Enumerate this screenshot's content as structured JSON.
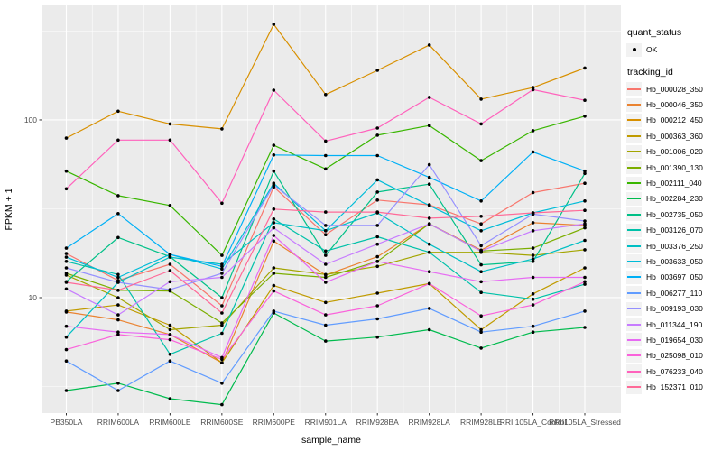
{
  "figure": {
    "kind": "ggplot-line-chart"
  },
  "legend": {
    "quant_status": {
      "title": "quant_status",
      "items": [
        {
          "label": "OK",
          "symbol": "black-point"
        }
      ]
    },
    "tracking_id": {
      "title": "tracking_id"
    }
  },
  "colors": {
    "panel_bg": "#EBEBEB",
    "gridline": "#FFFFFF",
    "point": "#000000",
    "legend_key_bg": "#F2F2F2",
    "tick_text": "#4D4D4D",
    "axis_text": "#000000"
  },
  "chart_data": {
    "type": "line",
    "title": "",
    "xlabel": "sample_name",
    "ylabel": "FPKM + 1",
    "y_scale": "log10",
    "ylim": [
      2.24,
      441
    ],
    "y_major_ticks": [
      10,
      100
    ],
    "y_minor_ticks": [
      3.162,
      31.62,
      316.2
    ],
    "grid": "white major and minor gridlines on gray panel",
    "legend_position": "right",
    "point_marker": "black point (quant_status OK)",
    "categories": [
      "PB350LA",
      "RRIM600LA",
      "RRIM600LE",
      "RRIM600SE",
      "RRIM600PE",
      "RRIM901LA",
      "RRIM928BA",
      "RRIM928LA",
      "RRIM928LE",
      "RRII105LA_Control",
      "RRII105LA_Stressed"
    ],
    "series": [
      {
        "name": "Hb_000028_350",
        "color": "#F8766D",
        "values": [
          17.7,
          12.5,
          15.4,
          9.0,
          42.0,
          22.6,
          35.4,
          33.3,
          26.0,
          39.0,
          44.0
        ]
      },
      {
        "name": "Hb_000046_350",
        "color": "#EA8331",
        "values": [
          8.3,
          7.5,
          6.2,
          4.3,
          20.8,
          13.4,
          17.0,
          26.0,
          18.5,
          26.4,
          25.5
        ]
      },
      {
        "name": "Hb_000212_450",
        "color": "#D89000",
        "values": [
          79,
          112,
          95,
          89,
          345,
          139,
          190,
          264,
          131,
          152,
          196
        ]
      },
      {
        "name": "Hb_000363_360",
        "color": "#C09B00",
        "values": [
          8.4,
          9.1,
          7.0,
          4.3,
          11.7,
          9.4,
          10.6,
          12.0,
          6.6,
          10.5,
          14.7
        ]
      },
      {
        "name": "Hb_001006_020",
        "color": "#A3A500",
        "values": [
          13.4,
          10.0,
          6.6,
          7.0,
          14.7,
          13.5,
          15.0,
          18.0,
          18.0,
          17.3,
          18.6
        ]
      },
      {
        "name": "Hb_001390_130",
        "color": "#7CAE00",
        "values": [
          13.7,
          11.0,
          10.9,
          7.2,
          13.7,
          13.0,
          16.0,
          26.0,
          18.3,
          19.0,
          24.7
        ]
      },
      {
        "name": "Hb_002111_040",
        "color": "#39B600",
        "values": [
          51.5,
          37.5,
          33.0,
          17.3,
          72.0,
          53.0,
          82.0,
          93.0,
          59.0,
          87.0,
          105.0
        ]
      },
      {
        "name": "Hb_002284_230",
        "color": "#00BB4E",
        "values": [
          3.0,
          3.3,
          2.7,
          2.5,
          8.2,
          5.7,
          6.0,
          6.6,
          5.2,
          6.4,
          6.8
        ]
      },
      {
        "name": "Hb_002735_050",
        "color": "#00C087",
        "values": [
          12.3,
          21.8,
          17.0,
          10.0,
          51.5,
          17.3,
          39.3,
          43.5,
          15.3,
          16.0,
          50.0
        ]
      },
      {
        "name": "Hb_003126_070",
        "color": "#00C1A9",
        "values": [
          16.0,
          13.5,
          4.8,
          6.3,
          27.7,
          18.3,
          22.0,
          18.0,
          10.7,
          9.8,
          11.9
        ]
      },
      {
        "name": "Hb_003376_250",
        "color": "#00BFC4",
        "values": [
          6.0,
          12.2,
          16.9,
          15.4,
          26.4,
          23.8,
          30.0,
          20.0,
          14.0,
          16.5,
          21.0
        ]
      },
      {
        "name": "Hb_003633_050",
        "color": "#00BCD8",
        "values": [
          16.9,
          13.0,
          17.5,
          14.5,
          44.0,
          23.8,
          46.0,
          33.0,
          23.8,
          30.0,
          35.0
        ]
      },
      {
        "name": "Hb_003697_050",
        "color": "#00B0F6",
        "values": [
          19.0,
          29.7,
          17.5,
          15.0,
          63.5,
          63.0,
          63.0,
          47.5,
          35.0,
          66.0,
          51.5
        ]
      },
      {
        "name": "Hb_006277_110",
        "color": "#619CFF",
        "values": [
          4.4,
          3.0,
          4.4,
          3.3,
          8.4,
          7.0,
          7.6,
          8.7,
          6.4,
          6.9,
          8.4
        ]
      },
      {
        "name": "Hb_009193_030",
        "color": "#9590FF",
        "values": [
          14.7,
          12.2,
          11.1,
          13.7,
          43.0,
          25.5,
          25.5,
          56.0,
          19.6,
          29.5,
          27.0
        ]
      },
      {
        "name": "Hb_011344_190",
        "color": "#C77CFF",
        "values": [
          11.2,
          8.0,
          12.3,
          13.0,
          24.7,
          15.4,
          20.0,
          26.0,
          18.3,
          23.8,
          26.0
        ]
      },
      {
        "name": "Hb_019654_030",
        "color": "#E76BF3",
        "values": [
          6.9,
          6.4,
          6.2,
          4.6,
          22.4,
          12.2,
          16.0,
          14.0,
          12.3,
          13.0,
          13.0
        ]
      },
      {
        "name": "Hb_025098_010",
        "color": "#FA62DB",
        "values": [
          5.1,
          6.2,
          5.8,
          4.5,
          10.9,
          8.0,
          9.0,
          12.0,
          7.9,
          9.1,
          12.3
        ]
      },
      {
        "name": "Hb_076233_040",
        "color": "#FF62BC",
        "values": [
          41.0,
          77.0,
          77.0,
          34.0,
          147.0,
          76.0,
          90.0,
          134.0,
          95.0,
          148.0,
          129.0
        ]
      },
      {
        "name": "Hb_152371_010",
        "color": "#FF6A98",
        "values": [
          12.2,
          11.0,
          14.2,
          8.2,
          31.5,
          30.3,
          30.3,
          28.0,
          28.7,
          30.0,
          31.0
        ]
      }
    ]
  }
}
